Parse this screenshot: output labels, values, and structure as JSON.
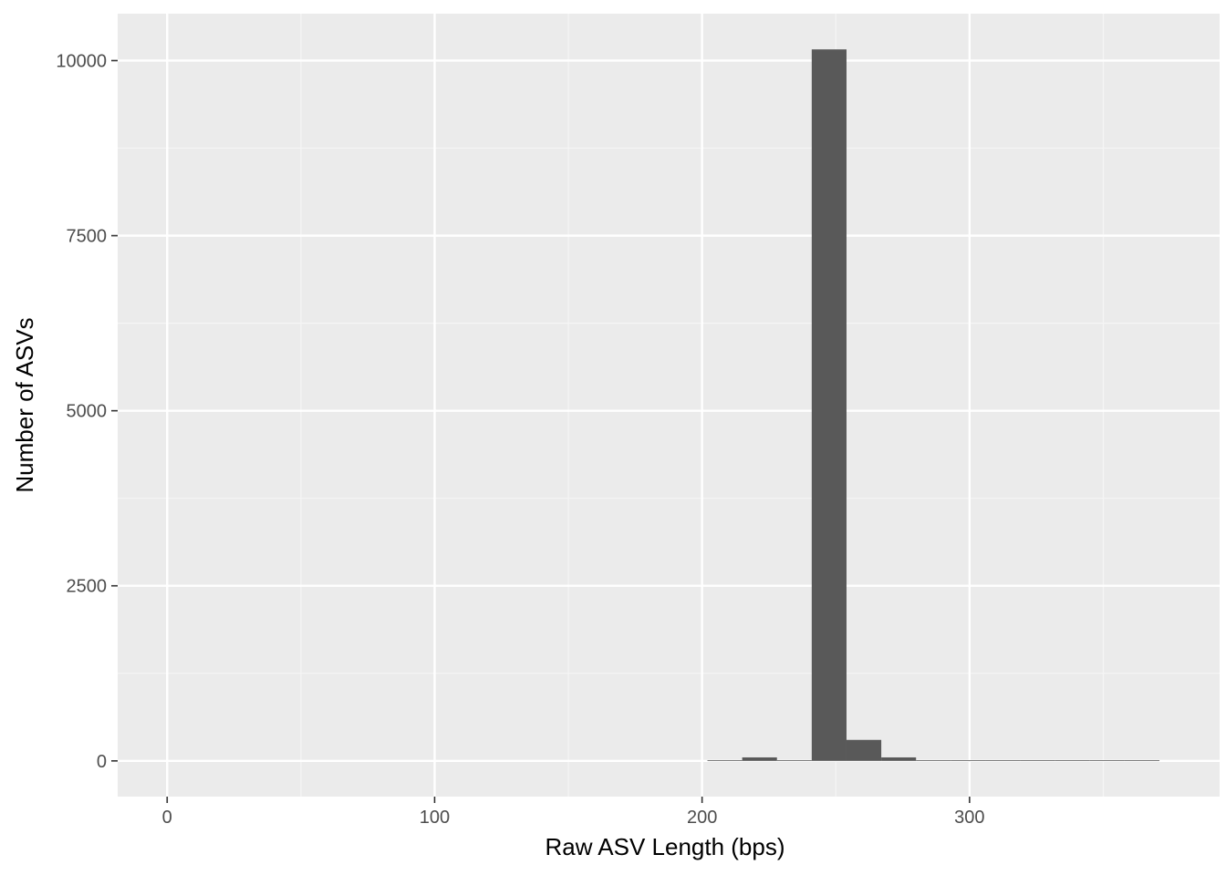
{
  "chart_data": {
    "type": "bar",
    "subtype": "histogram",
    "title": "",
    "xlabel": "Raw ASV Length (bps)",
    "ylabel": "Number of ASVs",
    "xlim": [
      -18.5,
      393.5
    ],
    "ylim": [
      -510,
      10670
    ],
    "x_ticks": [
      0,
      100,
      200,
      300
    ],
    "x_tick_labels": [
      "0",
      "100",
      "200",
      "300"
    ],
    "x_minor_ticks": [
      50,
      150,
      250,
      350
    ],
    "y_ticks": [
      0,
      2500,
      5000,
      7500,
      10000
    ],
    "y_tick_labels": [
      "0",
      "2500",
      "5000",
      "7500",
      "10000"
    ],
    "y_minor_ticks": [
      1250,
      3750,
      6250,
      8750
    ],
    "bin_width": 13,
    "bins": [
      {
        "x0": 202,
        "x1": 215,
        "count": 3
      },
      {
        "x0": 215,
        "x1": 228,
        "count": 50
      },
      {
        "x0": 228,
        "x1": 241,
        "count": 0
      },
      {
        "x0": 241,
        "x1": 254,
        "count": 10160
      },
      {
        "x0": 254,
        "x1": 267,
        "count": 300
      },
      {
        "x0": 267,
        "x1": 280,
        "count": 50
      },
      {
        "x0": 280,
        "x1": 293,
        "count": 5
      },
      {
        "x0": 293,
        "x1": 306,
        "count": 2
      },
      {
        "x0": 306,
        "x1": 319,
        "count": 2
      },
      {
        "x0": 319,
        "x1": 332,
        "count": 2
      },
      {
        "x0": 332,
        "x1": 345,
        "count": 2
      },
      {
        "x0": 345,
        "x1": 358,
        "count": 2
      },
      {
        "x0": 358,
        "x1": 371,
        "count": 2
      }
    ],
    "grid": true,
    "legend": "none",
    "colors": {
      "panel_background": "#ebebeb",
      "grid_major": "#ffffff",
      "grid_minor": "#f5f5f5",
      "bar_fill": "#595959",
      "tick_mark": "#333333",
      "tick_label": "#4d4d4d",
      "axis_title": "#000000"
    }
  }
}
